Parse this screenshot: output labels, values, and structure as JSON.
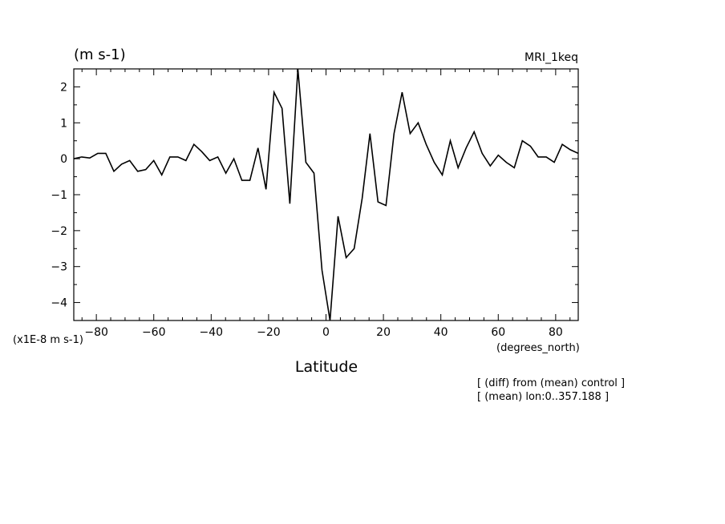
{
  "chart_data": {
    "type": "line",
    "title": "MRI_1keq",
    "ylabel": "(m s-1)",
    "y_scale_note": "(x1E-8 m s-1)",
    "xlabel": "Latitude",
    "x_unit": "(degrees_north)",
    "xlim": [
      -87.86,
      87.86
    ],
    "ylim": [
      -4.5,
      2.5
    ],
    "x_ticks": [
      -80,
      -60,
      -40,
      -20,
      0,
      20,
      40,
      60,
      80
    ],
    "x_tick_labels": [
      "−80",
      "−60",
      "−40",
      "−20",
      "0",
      "20",
      "40",
      "60",
      "80"
    ],
    "y_ticks": [
      -4,
      -3,
      -2,
      -1,
      0,
      1,
      2
    ],
    "y_tick_labels": [
      "−4",
      "−3",
      "−2",
      "−1",
      "0",
      "1",
      "2"
    ],
    "grid": false,
    "annotations": [
      "[ (diff) from (mean) control ]",
      "[ (mean) lon:0..357.188 ]"
    ],
    "series": [
      {
        "x": [
          -87.86,
          -85.1,
          -82.3,
          -79.5,
          -76.7,
          -73.9,
          -71.2,
          -68.4,
          -65.6,
          -62.8,
          -60.0,
          -57.2,
          -54.4,
          -51.6,
          -48.8,
          -46.0,
          -43.3,
          -40.5,
          -37.7,
          -34.9,
          -32.1,
          -29.3,
          -26.5,
          -23.7,
          -20.9,
          -18.1,
          -15.3,
          -12.6,
          -9.8,
          -7.0,
          -4.2,
          -1.4,
          1.4,
          4.2,
          7.0,
          9.8,
          12.6,
          15.3,
          18.1,
          20.9,
          23.7,
          26.5,
          29.3,
          32.1,
          34.9,
          37.7,
          40.5,
          43.3,
          46.0,
          48.8,
          51.6,
          54.4,
          57.2,
          60.0,
          62.8,
          65.6,
          68.4,
          71.2,
          73.9,
          76.7,
          79.5,
          82.3,
          85.1,
          87.86
        ],
        "values": [
          0.0,
          0.05,
          0.02,
          0.15,
          0.15,
          -0.35,
          -0.15,
          -0.05,
          -0.35,
          -0.3,
          -0.05,
          -0.45,
          0.05,
          0.05,
          -0.05,
          0.4,
          0.2,
          -0.05,
          0.05,
          -0.4,
          0.0,
          -0.6,
          -0.6,
          0.3,
          -0.85,
          1.85,
          1.4,
          -1.25,
          2.5,
          -0.1,
          -0.4,
          -3.1,
          -4.5,
          -1.6,
          -2.75,
          -2.5,
          -1.1,
          0.7,
          -1.2,
          -1.3,
          0.7,
          1.85,
          0.7,
          1.0,
          0.4,
          -0.1,
          -0.45,
          0.5,
          -0.25,
          0.3,
          0.75,
          0.15,
          -0.2,
          0.1,
          -0.1,
          -0.25,
          0.5,
          0.35,
          0.05,
          0.05,
          -0.1,
          0.4,
          0.25,
          0.15
        ]
      }
    ]
  }
}
